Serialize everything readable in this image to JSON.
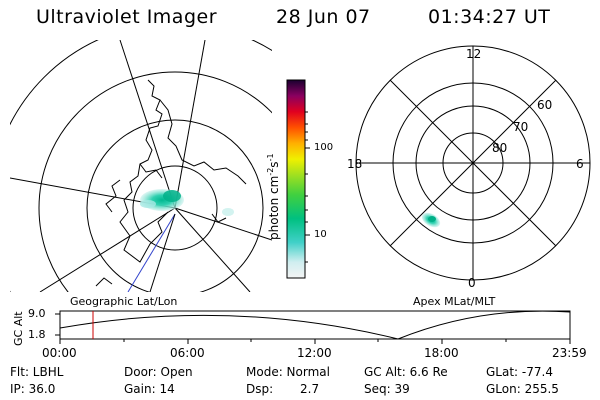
{
  "header": {
    "instrument": "Ultraviolet Imager",
    "date": "28 Jun 07",
    "time": "01:34:27 UT"
  },
  "colorbar": {
    "unit_main": "photon cm",
    "unit_exp1": "-2",
    "unit_s": "s",
    "unit_exp2": "-1",
    "ticks": [
      "100",
      "10"
    ]
  },
  "polar_plot": {
    "label_top": "12",
    "label_left": "18",
    "label_right": "6",
    "label_bottom": "0",
    "lat_labels": [
      "60",
      "70",
      "80"
    ]
  },
  "panel_labels": {
    "left": "Geographic Lat/Lon",
    "right": "Apex MLat/MLT"
  },
  "altitude_plot": {
    "ylabel": "GC Alt",
    "y_ticks": [
      "9.0",
      "1.8"
    ],
    "x_ticks": [
      "00:00",
      "06:00",
      "12:00",
      "18:00",
      "23:59"
    ],
    "marker_time": "01:34"
  },
  "info": {
    "filter": "Flt: LBHL",
    "door": "Door: Open",
    "mode": "Mode: Normal",
    "gc_alt": "GC Alt: 6.6 Re",
    "glat": "GLat: -77.4",
    "ip": "IP: 36.0",
    "gain": "Gain: 14",
    "dsp_label": "Dsp:",
    "dsp_value": "2.7",
    "seq": "Seq: 39",
    "glon": "GLon: 255.5"
  },
  "colors": {
    "aurora_core": "#00c8a0",
    "aurora_edge": "#a0e8e0",
    "marker": "#cc0000",
    "track": "#3344cc"
  }
}
